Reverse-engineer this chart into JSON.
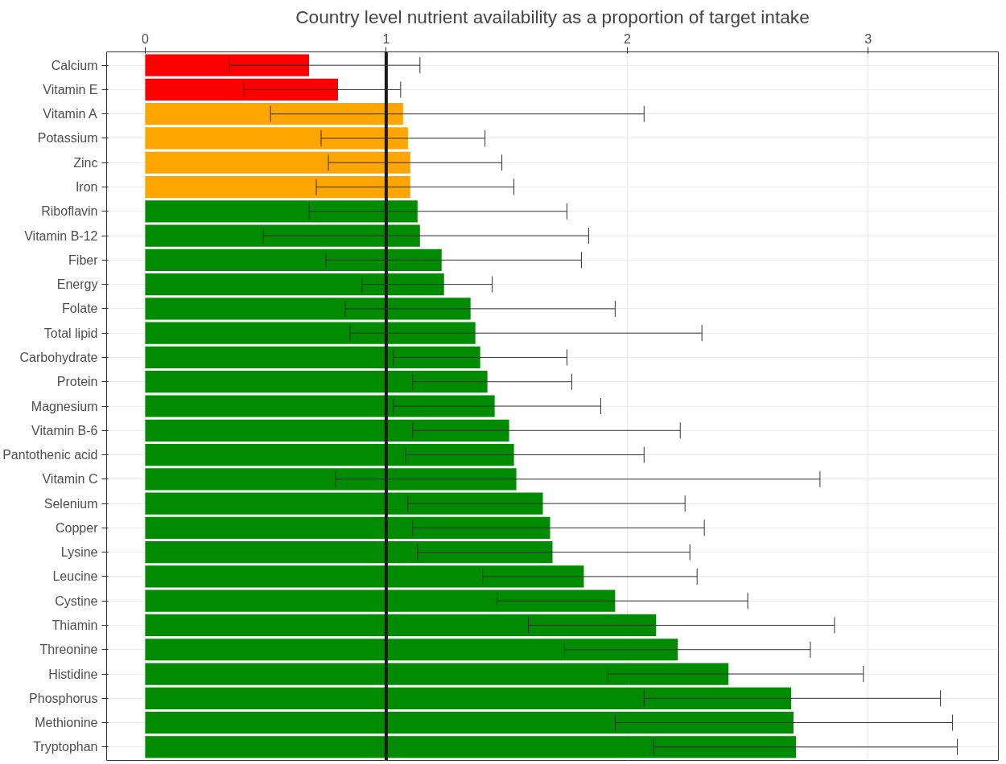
{
  "chart_data": {
    "type": "bar",
    "orientation": "horizontal",
    "title": "Country level nutrient availability as a proportion of target intake",
    "categories": [
      "Calcium",
      "Vitamin E",
      "Vitamin A",
      "Potassium",
      "Zinc",
      "Iron",
      "Riboflavin",
      "Vitamin B-12",
      "Fiber",
      "Energy",
      "Folate",
      "Total lipid",
      "Carbohydrate",
      "Protein",
      "Magnesium",
      "Vitamin B-6",
      "Pantothenic acid",
      "Vitamin C",
      "Selenium",
      "Copper",
      "Lysine",
      "Leucine",
      "Cystine",
      "Thiamin",
      "Threonine",
      "Histidine",
      "Phosphorus",
      "Methionine",
      "Tryptophan"
    ],
    "values": [
      0.68,
      0.8,
      1.07,
      1.09,
      1.1,
      1.1,
      1.13,
      1.14,
      1.23,
      1.24,
      1.35,
      1.37,
      1.39,
      1.42,
      1.45,
      1.51,
      1.53,
      1.54,
      1.65,
      1.68,
      1.69,
      1.82,
      1.95,
      2.12,
      2.21,
      2.42,
      2.68,
      2.69,
      2.7
    ],
    "errors": [
      [
        0.35,
        1.14
      ],
      [
        0.41,
        1.06
      ],
      [
        0.52,
        2.07
      ],
      [
        0.73,
        1.41
      ],
      [
        0.76,
        1.48
      ],
      [
        0.71,
        1.53
      ],
      [
        0.68,
        1.75
      ],
      [
        0.49,
        1.84
      ],
      [
        0.75,
        1.81
      ],
      [
        0.9,
        1.44
      ],
      [
        0.83,
        1.95
      ],
      [
        0.85,
        2.31
      ],
      [
        1.03,
        1.75
      ],
      [
        1.11,
        1.77
      ],
      [
        1.03,
        1.89
      ],
      [
        1.11,
        2.22
      ],
      [
        1.08,
        2.07
      ],
      [
        0.79,
        2.8
      ],
      [
        1.09,
        2.24
      ],
      [
        1.11,
        2.32
      ],
      [
        1.13,
        2.26
      ],
      [
        1.4,
        2.29
      ],
      [
        1.46,
        2.5
      ],
      [
        1.59,
        2.86
      ],
      [
        1.74,
        2.76
      ],
      [
        1.92,
        2.98
      ],
      [
        2.07,
        3.3
      ],
      [
        1.95,
        3.35
      ],
      [
        2.11,
        3.37
      ]
    ],
    "colors": [
      "#ff0000",
      "#ff0000",
      "#ffa500",
      "#ffa500",
      "#ffa500",
      "#ffa500",
      "#008b00",
      "#008b00",
      "#008b00",
      "#008b00",
      "#008b00",
      "#008b00",
      "#008b00",
      "#008b00",
      "#008b00",
      "#008b00",
      "#008b00",
      "#008b00",
      "#008b00",
      "#008b00",
      "#008b00",
      "#008b00",
      "#008b00",
      "#008b00",
      "#008b00",
      "#008b00",
      "#008b00",
      "#008b00",
      "#008b00"
    ],
    "xlim": [
      -0.16,
      3.54
    ],
    "xticks": [
      0,
      1,
      2,
      3
    ],
    "ref_lines": [
      {
        "axis": "x",
        "value": 1,
        "color": "#1a1a1a"
      }
    ],
    "grid": true
  }
}
